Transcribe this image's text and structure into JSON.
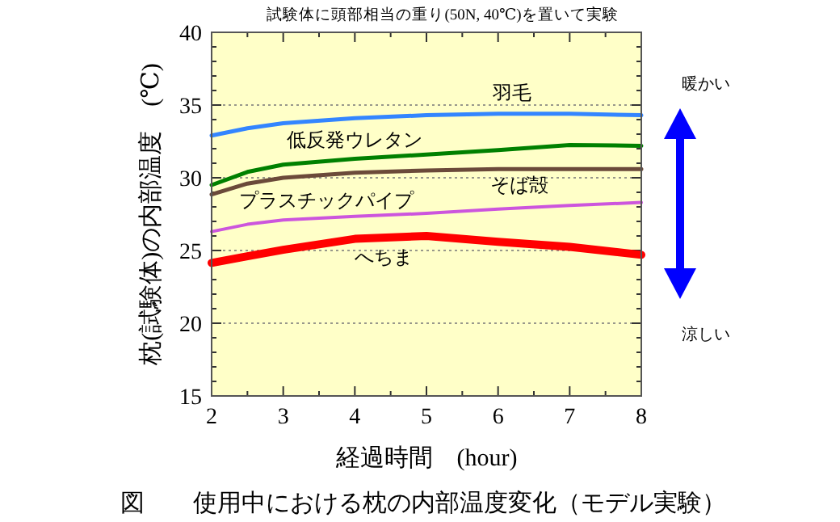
{
  "chart_data": {
    "type": "line",
    "subtitle": "試験体に頭部相当の重り(50N, 40℃)を置いて実験",
    "xlabel": "経過時間　(hour)",
    "ylabel": "枕(試験体)の内部温度　(℃)",
    "x": [
      2,
      2.5,
      3,
      4,
      5,
      6,
      7,
      8
    ],
    "series": [
      {
        "name": "羽毛",
        "color": "#3385ff",
        "values": [
          32.9,
          33.4,
          33.75,
          34.1,
          34.3,
          34.4,
          34.4,
          34.3
        ]
      },
      {
        "name": "低反発ウレタン",
        "color": "#008000",
        "values": [
          29.5,
          30.4,
          30.9,
          31.3,
          31.6,
          31.9,
          32.25,
          32.2
        ]
      },
      {
        "name": "そば殻",
        "color": "#6b4a3a",
        "values": [
          28.85,
          29.6,
          30.0,
          30.35,
          30.5,
          30.6,
          30.6,
          30.6
        ]
      },
      {
        "name": "プラスチックパイプ",
        "color": "#cc55dd",
        "values": [
          26.3,
          26.8,
          27.1,
          27.35,
          27.55,
          27.85,
          28.1,
          28.3
        ]
      },
      {
        "name": "へちま",
        "color": "#ff0000",
        "values": [
          24.15,
          24.6,
          25.05,
          25.8,
          26.0,
          25.6,
          25.25,
          24.7
        ]
      }
    ],
    "xlim": [
      2,
      8
    ],
    "ylim": [
      15,
      40
    ],
    "xticks": [
      2,
      3,
      4,
      5,
      6,
      7,
      8
    ],
    "yticks": [
      15,
      20,
      25,
      30,
      35,
      40
    ],
    "grid": "y",
    "annotations": [
      "暖かい",
      "涼しい",
      "図　　使用中における枕の内部温度変化（モデル実験）"
    ]
  }
}
